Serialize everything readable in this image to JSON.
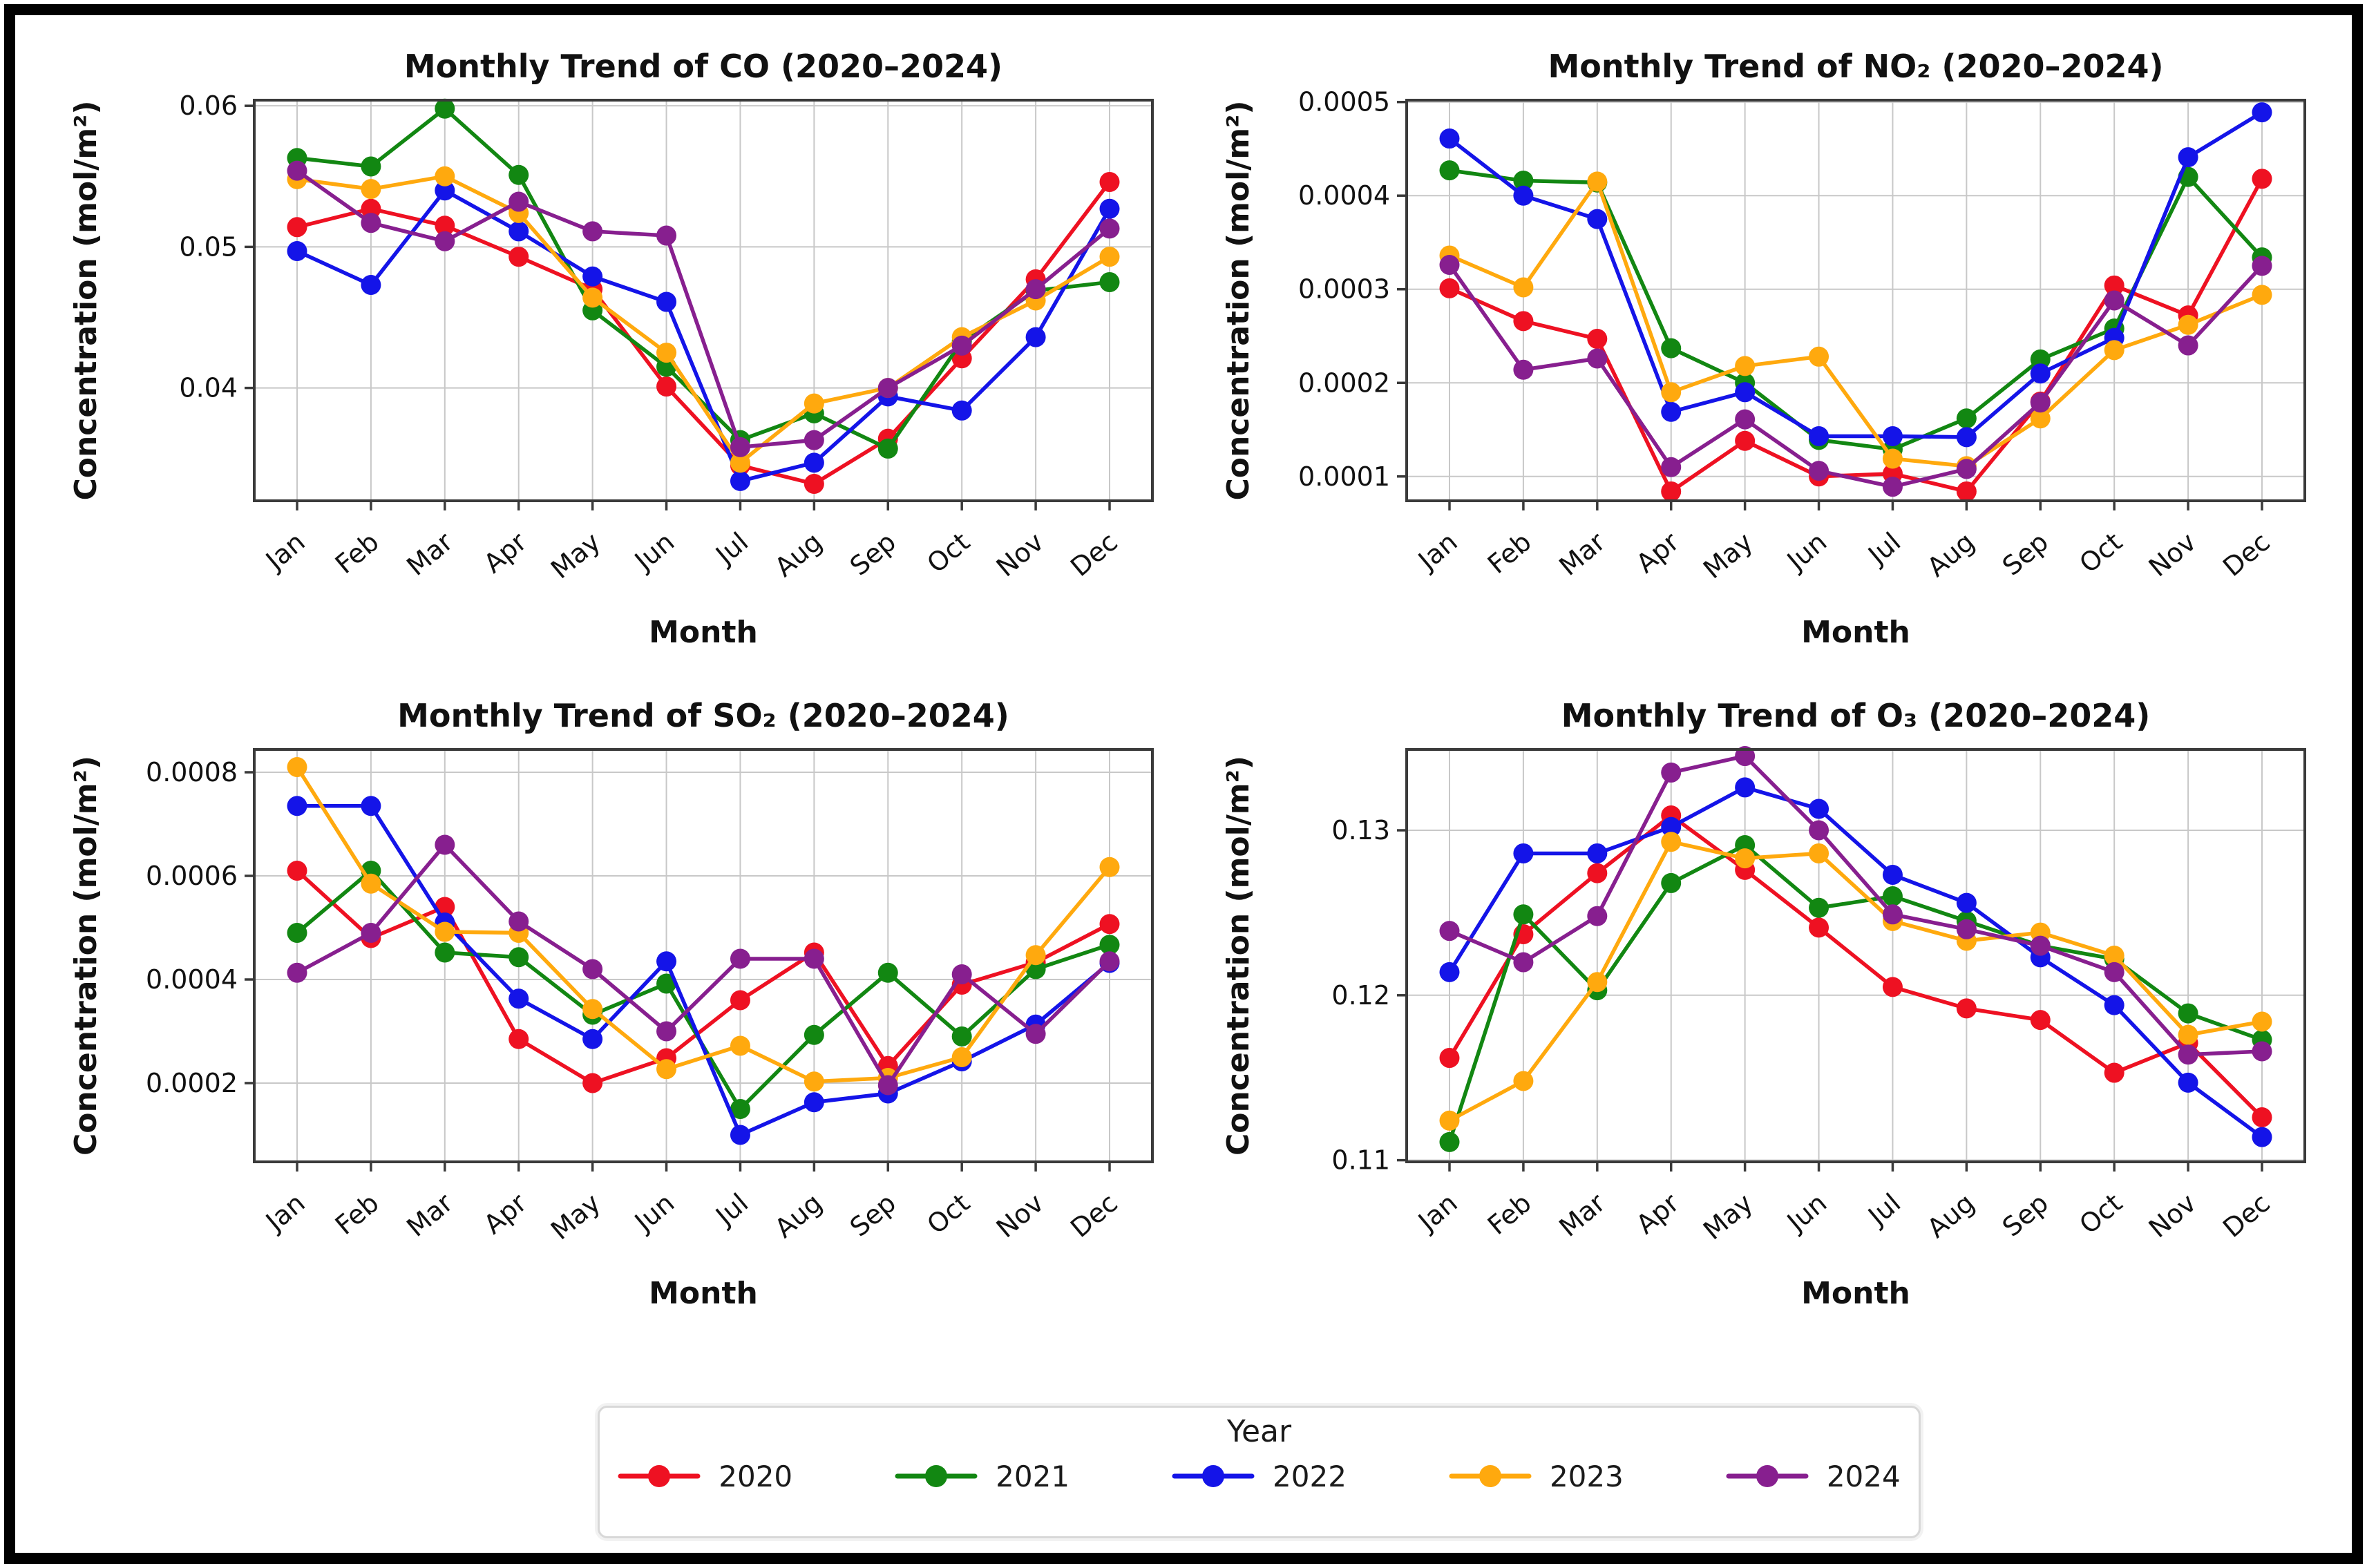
{
  "figure": {
    "background": "#ffffff",
    "frame_color": "#000000",
    "grid_color": "#c8c8c8",
    "spine_color": "#3a3a3a"
  },
  "months": [
    "Jan",
    "Feb",
    "Mar",
    "Apr",
    "May",
    "Jun",
    "Jul",
    "Aug",
    "Sep",
    "Oct",
    "Nov",
    "Dec"
  ],
  "legend": {
    "title": "Year",
    "entries": [
      {
        "label": "2020",
        "color": "#ee1122"
      },
      {
        "label": "2021",
        "color": "#128712"
      },
      {
        "label": "2022",
        "color": "#1414e8"
      },
      {
        "label": "2023",
        "color": "#ffa90e"
      },
      {
        "label": "2024",
        "color": "#871f8f"
      }
    ]
  },
  "chart_data": [
    {
      "id": "co",
      "type": "line",
      "title": "Monthly Trend of CO (2020–2024)",
      "xlabel": "Month",
      "ylabel": "Concentration (mol/m²)",
      "x": [
        "Jan",
        "Feb",
        "Mar",
        "Apr",
        "May",
        "Jun",
        "Jul",
        "Aug",
        "Sep",
        "Oct",
        "Nov",
        "Dec"
      ],
      "ylim": [
        0.032,
        0.0604
      ],
      "grid": true,
      "legend_position": "shared-bottom",
      "yticks": [
        {
          "value": 0.04,
          "label": "0.04"
        },
        {
          "value": 0.05,
          "label": "0.05"
        },
        {
          "value": 0.06,
          "label": "0.06"
        }
      ],
      "series": [
        {
          "name": "2020",
          "color": "#ee1122",
          "values": [
            0.0514,
            0.0527,
            0.0515,
            0.0493,
            0.047,
            0.0401,
            0.0345,
            0.0332,
            0.0364,
            0.0421,
            0.0477,
            0.0546
          ]
        },
        {
          "name": "2021",
          "color": "#128712",
          "values": [
            0.0563,
            0.0557,
            0.0598,
            0.0551,
            0.0455,
            0.0415,
            0.0363,
            0.0382,
            0.0357,
            0.0433,
            0.0469,
            0.0475
          ]
        },
        {
          "name": "2022",
          "color": "#1414e8",
          "values": [
            0.0497,
            0.0473,
            0.054,
            0.0511,
            0.0479,
            0.0461,
            0.0334,
            0.0347,
            0.0394,
            0.0384,
            0.0436,
            0.0527
          ]
        },
        {
          "name": "2023",
          "color": "#ffa90e",
          "values": [
            0.0548,
            0.0541,
            0.055,
            0.0524,
            0.0464,
            0.0425,
            0.0347,
            0.0389,
            0.04,
            0.0436,
            0.0462,
            0.0493
          ]
        },
        {
          "name": "2024",
          "color": "#871f8f",
          "values": [
            0.0554,
            0.0517,
            0.0504,
            0.0532,
            0.0511,
            0.0508,
            0.0358,
            0.0363,
            0.04,
            0.043,
            0.047,
            0.0513
          ]
        }
      ]
    },
    {
      "id": "no2",
      "type": "line",
      "title": "Monthly Trend of NO₂ (2020–2024)",
      "xlabel": "Month",
      "ylabel": "Concentration (mol/m²)",
      "x": [
        "Jan",
        "Feb",
        "Mar",
        "Apr",
        "May",
        "Jun",
        "Jul",
        "Aug",
        "Sep",
        "Oct",
        "Nov",
        "Dec"
      ],
      "ylim": [
        7.4e-05,
        0.000502
      ],
      "grid": true,
      "legend_position": "shared-bottom",
      "yticks": [
        {
          "value": 0.0001,
          "label": "0.0001"
        },
        {
          "value": 0.0002,
          "label": "0.0002"
        },
        {
          "value": 0.0003,
          "label": "0.0003"
        },
        {
          "value": 0.0004,
          "label": "0.0004"
        },
        {
          "value": 0.0005,
          "label": "0.0005"
        }
      ],
      "series": [
        {
          "name": "2020",
          "color": "#ee1122",
          "values": [
            0.000301,
            0.000266,
            0.000247,
            8.4e-05,
            0.000138,
            0.0001,
            0.000103,
            8.4e-05,
            0.00018,
            0.000304,
            0.000272,
            0.000418
          ]
        },
        {
          "name": "2021",
          "color": "#128712",
          "values": [
            0.000427,
            0.000416,
            0.000414,
            0.000237,
            0.0002,
            0.000139,
            0.000129,
            0.000162,
            0.000225,
            0.000258,
            0.00042,
            0.000334
          ]
        },
        {
          "name": "2022",
          "color": "#1414e8",
          "values": [
            0.000461,
            0.0004,
            0.000375,
            0.000169,
            0.00019,
            0.000143,
            0.000143,
            0.000142,
            0.00021,
            0.000248,
            0.000441,
            0.000489
          ]
        },
        {
          "name": "2023",
          "color": "#ffa90e",
          "values": [
            0.000336,
            0.000302,
            0.000415,
            0.00019,
            0.000218,
            0.000228,
            0.000119,
            0.000111,
            0.000162,
            0.000235,
            0.000262,
            0.000294
          ]
        },
        {
          "name": "2024",
          "color": "#871f8f",
          "values": [
            0.000326,
            0.000214,
            0.000226,
            0.00011,
            0.000161,
            0.000106,
            8.9e-05,
            0.000108,
            0.000179,
            0.000288,
            0.00024,
            0.000325
          ]
        }
      ]
    },
    {
      "id": "so2",
      "type": "line",
      "title": "Monthly Trend of SO₂ (2020–2024)",
      "xlabel": "Month",
      "ylabel": "Concentration (mol/m²)",
      "x": [
        "Jan",
        "Feb",
        "Mar",
        "Apr",
        "May",
        "Jun",
        "Jul",
        "Aug",
        "Sep",
        "Oct",
        "Nov",
        "Dec"
      ],
      "ylim": [
        4.8e-05,
        0.000844
      ],
      "grid": true,
      "legend_position": "shared-bottom",
      "yticks": [
        {
          "value": 0.0002,
          "label": "0.0002"
        },
        {
          "value": 0.0004,
          "label": "0.0004"
        },
        {
          "value": 0.0006,
          "label": "0.0006"
        },
        {
          "value": 0.0008,
          "label": "0.0008"
        }
      ],
      "series": [
        {
          "name": "2020",
          "color": "#ee1122",
          "values": [
            0.00061,
            0.00048,
            0.00054,
            0.000285,
            0.0002,
            0.000248,
            0.00036,
            0.000452,
            0.000233,
            0.00039,
            0.000433,
            0.000507
          ]
        },
        {
          "name": "2021",
          "color": "#128712",
          "values": [
            0.00049,
            0.00061,
            0.000452,
            0.000443,
            0.000332,
            0.000392,
            0.00015,
            0.000293,
            0.000413,
            0.00029,
            0.00042,
            0.000467
          ]
        },
        {
          "name": "2022",
          "color": "#1414e8",
          "values": [
            0.000735,
            0.000735,
            0.00051,
            0.000363,
            0.000285,
            0.000435,
            0.0001,
            0.000163,
            0.00018,
            0.000242,
            0.000313,
            0.000432
          ]
        },
        {
          "name": "2023",
          "color": "#ffa90e",
          "values": [
            0.00081,
            0.000585,
            0.000492,
            0.00049,
            0.000343,
            0.000227,
            0.000272,
            0.000203,
            0.00021,
            0.00025,
            0.000447,
            0.000617
          ]
        },
        {
          "name": "2024",
          "color": "#871f8f",
          "values": [
            0.000413,
            0.00049,
            0.00066,
            0.000512,
            0.00042,
            0.0003,
            0.00044,
            0.00044,
            0.000196,
            0.00041,
            0.000295,
            0.000435
          ]
        }
      ]
    },
    {
      "id": "o3",
      "type": "line",
      "title": "Monthly Trend of O₃ (2020–2024)",
      "xlabel": "Month",
      "ylabel": "Concentration (mol/m²)",
      "x": [
        "Jan",
        "Feb",
        "Mar",
        "Apr",
        "May",
        "Jun",
        "Jul",
        "Aug",
        "Sep",
        "Oct",
        "Nov",
        "Dec"
      ],
      "ylim": [
        0.1099,
        0.1349
      ],
      "grid": true,
      "legend_position": "shared-bottom",
      "yticks": [
        {
          "value": 0.11,
          "label": "0.11"
        },
        {
          "value": 0.12,
          "label": "0.12"
        },
        {
          "value": 0.13,
          "label": "0.13"
        }
      ],
      "series": [
        {
          "name": "2020",
          "color": "#ee1122",
          "values": [
            0.1162,
            0.1237,
            0.1274,
            0.1309,
            0.1276,
            0.1241,
            0.1205,
            0.1192,
            0.1185,
            0.1153,
            0.1171,
            0.1126
          ]
        },
        {
          "name": "2021",
          "color": "#128712",
          "values": [
            0.1111,
            0.1249,
            0.1203,
            0.1268,
            0.1291,
            0.1253,
            0.126,
            0.1245,
            0.123,
            0.1222,
            0.1189,
            0.1173
          ]
        },
        {
          "name": "2022",
          "color": "#1414e8",
          "values": [
            0.1214,
            0.1286,
            0.1286,
            0.1302,
            0.1326,
            0.1313,
            0.1273,
            0.1256,
            0.1223,
            0.1194,
            0.1147,
            0.1114
          ]
        },
        {
          "name": "2023",
          "color": "#ffa90e",
          "values": [
            0.1124,
            0.1148,
            0.1208,
            0.1293,
            0.1283,
            0.1286,
            0.1245,
            0.1233,
            0.1238,
            0.1224,
            0.1176,
            0.1184
          ]
        },
        {
          "name": "2024",
          "color": "#871f8f",
          "values": [
            0.1239,
            0.122,
            0.1248,
            0.1335,
            0.1345,
            0.13,
            0.1249,
            0.124,
            0.123,
            0.1214,
            0.1164,
            0.1166
          ]
        }
      ]
    }
  ]
}
